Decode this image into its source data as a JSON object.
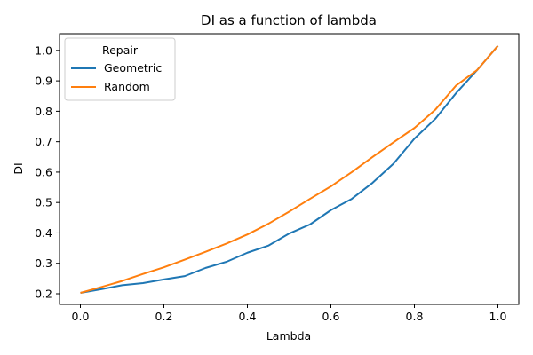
{
  "chart_data": {
    "type": "line",
    "title": "DI as a function of lambda",
    "xlabel": "Lambda",
    "ylabel": "DI",
    "xlim": [
      -0.05,
      1.05
    ],
    "ylim": [
      0.165,
      1.055
    ],
    "xticks": [
      "0.0",
      "0.2",
      "0.4",
      "0.6",
      "0.8",
      "1.0"
    ],
    "yticks": [
      "0.2",
      "0.3",
      "0.4",
      "0.5",
      "0.6",
      "0.7",
      "0.8",
      "0.9",
      "1.0"
    ],
    "grid": false,
    "legend": {
      "title": "Repair",
      "placement": "top-left"
    },
    "x": [
      0.0,
      0.05,
      0.1,
      0.15,
      0.2,
      0.25,
      0.3,
      0.35,
      0.4,
      0.45,
      0.5,
      0.55,
      0.6,
      0.65,
      0.7,
      0.75,
      0.8,
      0.85,
      0.9,
      0.95,
      1.0
    ],
    "series": [
      {
        "name": "Geometric",
        "color": "#1f77b4",
        "values": [
          0.203,
          0.215,
          0.228,
          0.235,
          0.247,
          0.258,
          0.285,
          0.305,
          0.335,
          0.358,
          0.398,
          0.428,
          0.475,
          0.512,
          0.565,
          0.628,
          0.71,
          0.775,
          0.86,
          0.935,
          1.015
        ]
      },
      {
        "name": "Random",
        "color": "#ff7f0e",
        "values": [
          0.203,
          0.222,
          0.242,
          0.265,
          0.287,
          0.312,
          0.338,
          0.365,
          0.395,
          0.43,
          0.47,
          0.512,
          0.553,
          0.6,
          0.65,
          0.698,
          0.745,
          0.805,
          0.885,
          0.935,
          1.015
        ]
      }
    ]
  }
}
